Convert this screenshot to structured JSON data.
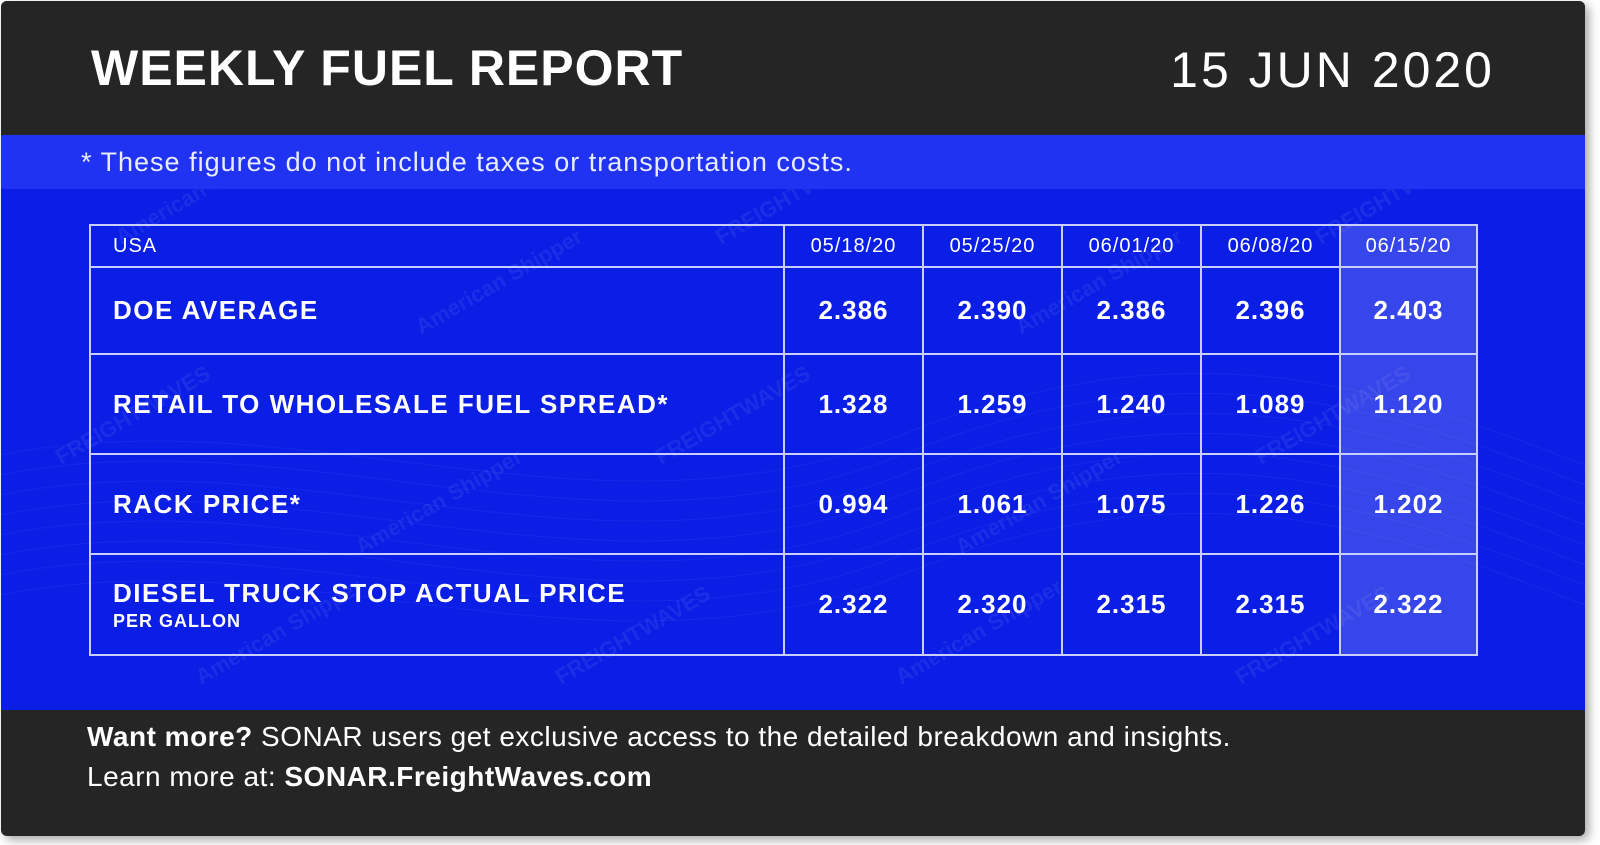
{
  "header": {
    "title": "WEEKLY FUEL REPORT",
    "date": "15 JUN 2020"
  },
  "disclaimer": "* These figures do not include taxes or transportation costs.",
  "table": {
    "region": "USA",
    "dates": [
      "05/18/20",
      "05/25/20",
      "06/01/20",
      "06/08/20",
      "06/15/20"
    ],
    "rows": [
      {
        "label": "DOE AVERAGE",
        "sublabel": "",
        "values": [
          "2.386",
          "2.390",
          "2.386",
          "2.396",
          "2.403"
        ]
      },
      {
        "label": "RETAIL TO WHOLESALE FUEL SPREAD*",
        "sublabel": "",
        "values": [
          "1.328",
          "1.259",
          "1.240",
          "1.089",
          "1.120"
        ]
      },
      {
        "label": "RACK PRICE*",
        "sublabel": "",
        "values": [
          "0.994",
          "1.061",
          "1.075",
          "1.226",
          "1.202"
        ]
      },
      {
        "label": "DIESEL TRUCK STOP ACTUAL PRICE",
        "sublabel": "PER GALLON",
        "values": [
          "2.322",
          "2.320",
          "2.315",
          "2.315",
          "2.322"
        ]
      }
    ]
  },
  "watermark": {
    "texts": [
      "American Shipper",
      "FREIGHTWAVES"
    ]
  },
  "footer": {
    "lead_bold": "Want more?",
    "lead_rest": " SONAR users get exclusive access to the detailed breakdown and insights.",
    "learn_text": "Learn more at: ",
    "link": "SONAR.FreightWaves.com"
  },
  "colors": {
    "background_dark": "#252525",
    "background_blue": "#0a1ee6",
    "band_blue": "#2032f2",
    "highlight_column": "rgba(255,255,255,0.18)"
  }
}
